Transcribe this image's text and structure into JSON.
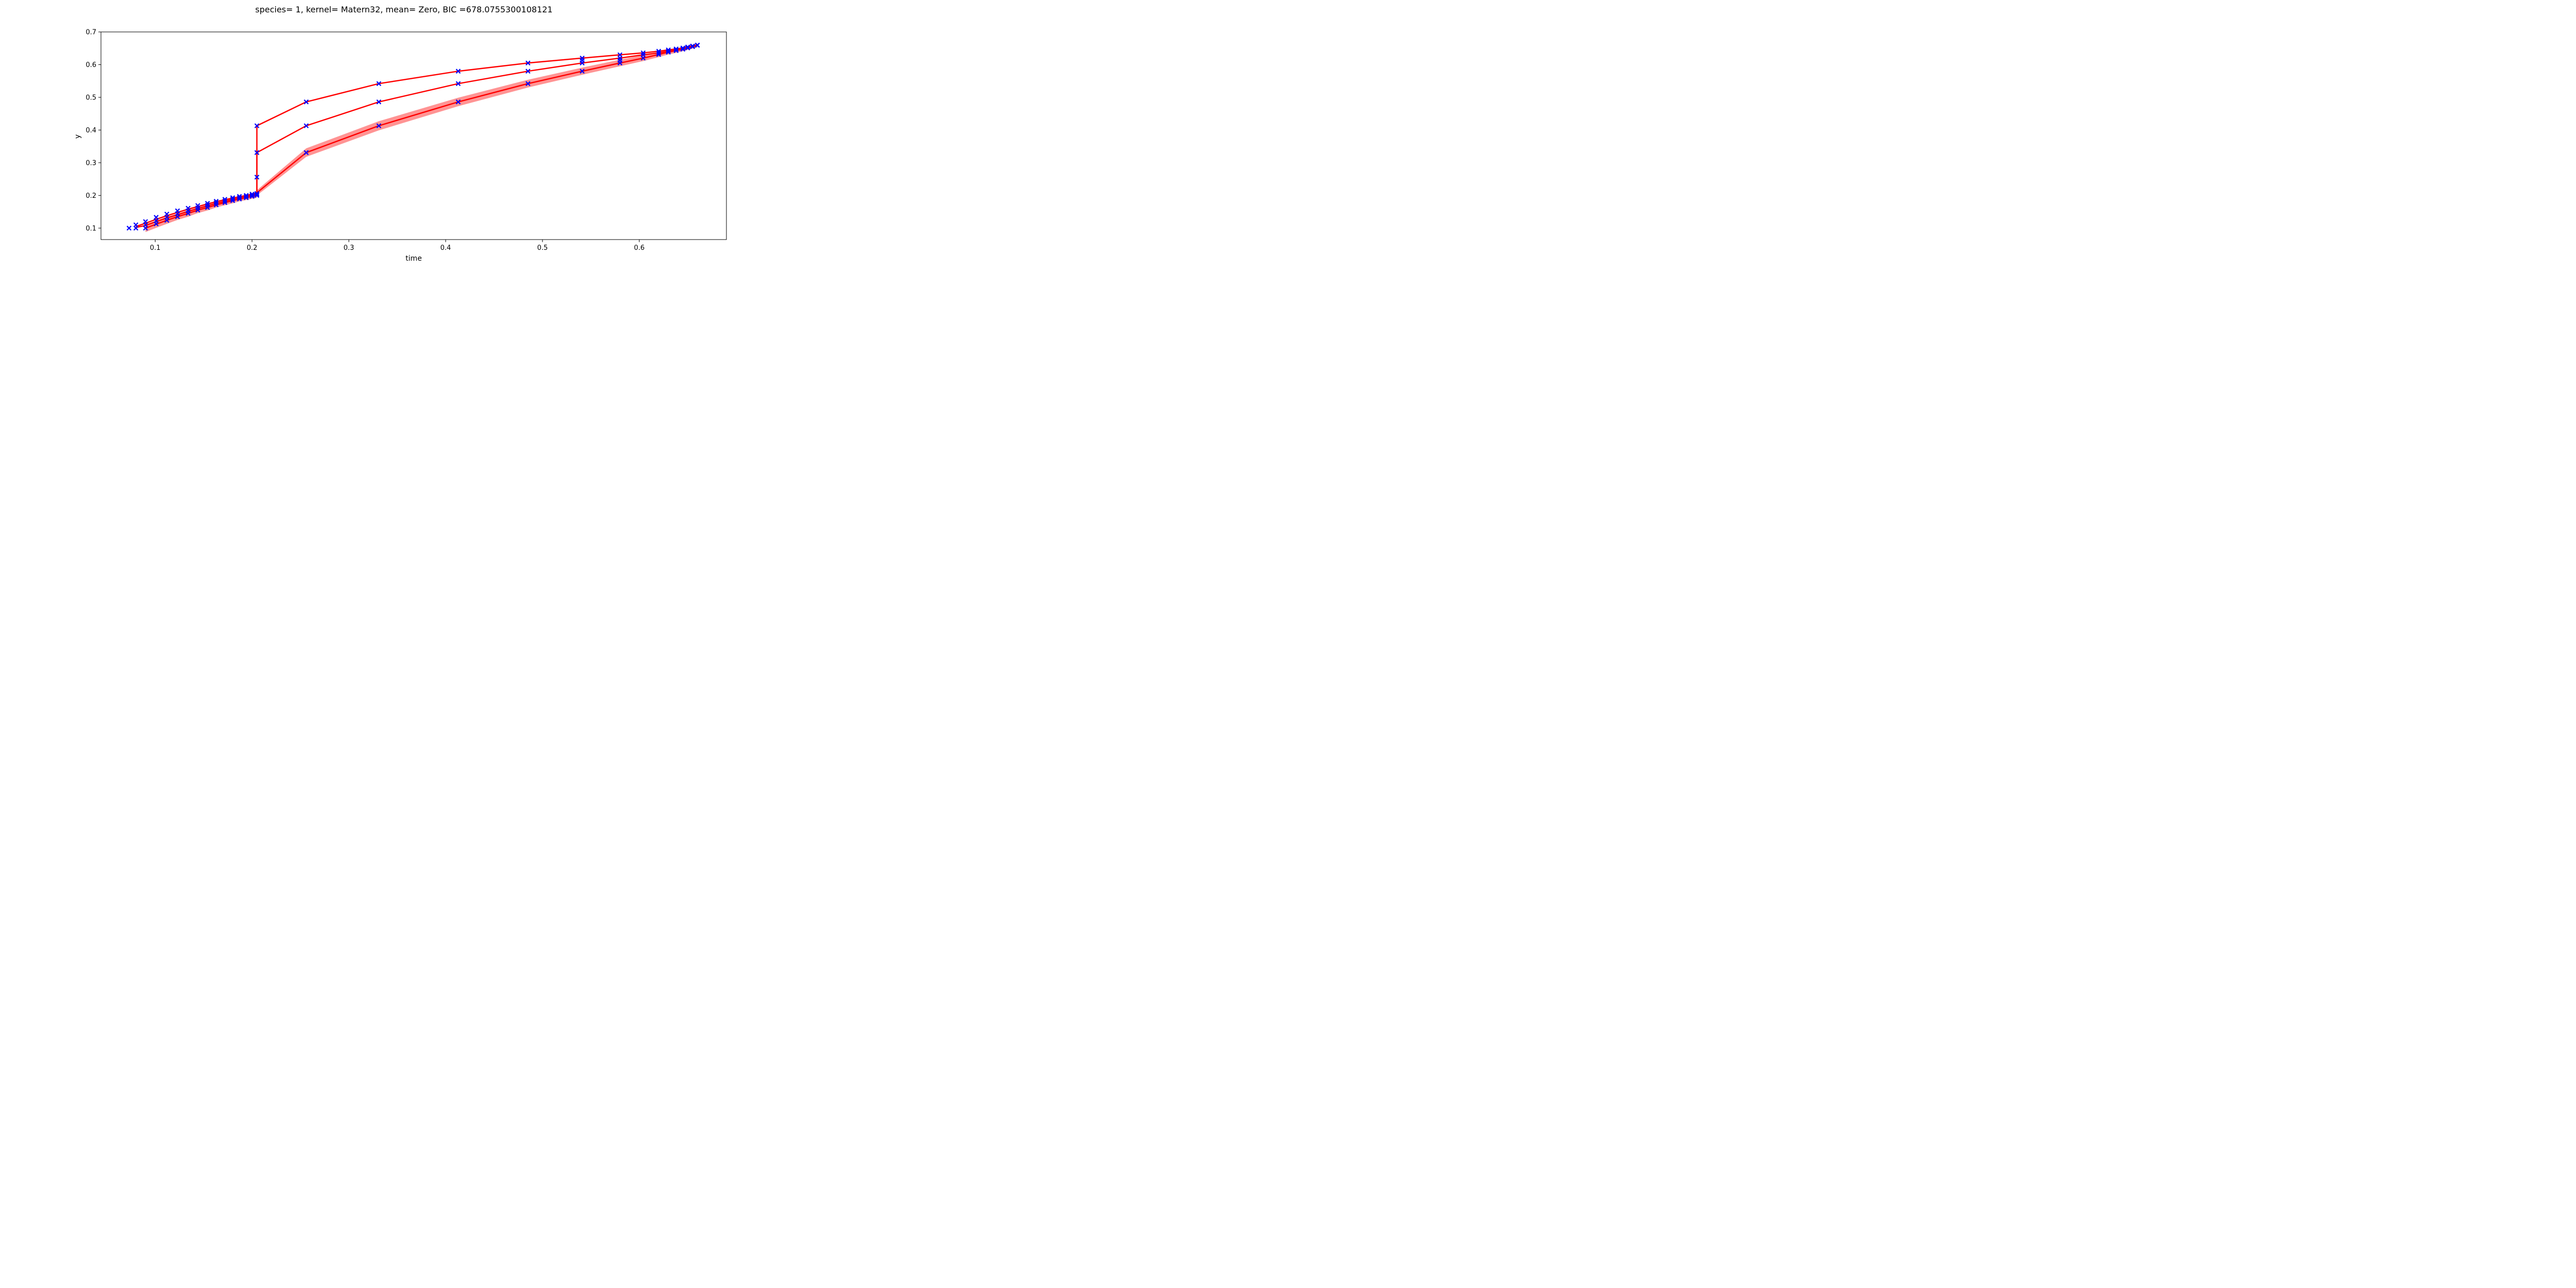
{
  "chart_data": {
    "type": "line",
    "title": "species= 1, kernel= Matern32, mean= Zero, BIC =678.0755300108121",
    "xlabel": "time",
    "ylabel": "y",
    "xlim": [
      0.044,
      0.69
    ],
    "ylim": [
      0.065,
      0.7
    ],
    "xticks": [
      0.1,
      0.2,
      0.3,
      0.4,
      0.5,
      0.6
    ],
    "xtick_labels": [
      "0.1",
      "0.2",
      "0.3",
      "0.4",
      "0.5",
      "0.6"
    ],
    "yticks": [
      0.1,
      0.2,
      0.3,
      0.4,
      0.5,
      0.6,
      0.7
    ],
    "ytick_labels": [
      "0.1",
      "0.2",
      "0.3",
      "0.4",
      "0.5",
      "0.6",
      "0.7"
    ],
    "grid": false,
    "legend": "none",
    "colors": {
      "line": "#ff0000",
      "band": "#ff6666",
      "marker": "#0000ff"
    },
    "series": [
      {
        "values": [
          [
            0.08,
            0.105
          ],
          [
            0.09,
            0.115
          ],
          [
            0.101,
            0.127
          ],
          [
            0.112,
            0.138
          ],
          [
            0.123,
            0.148
          ],
          [
            0.134,
            0.158
          ],
          [
            0.144,
            0.166
          ],
          [
            0.154,
            0.174
          ],
          [
            0.163,
            0.181
          ],
          [
            0.172,
            0.187
          ],
          [
            0.18,
            0.192
          ],
          [
            0.187,
            0.196
          ],
          [
            0.194,
            0.2
          ],
          [
            0.2,
            0.204
          ],
          [
            0.205,
            0.207
          ],
          [
            0.205,
            0.413
          ],
          [
            0.256,
            0.486
          ],
          [
            0.331,
            0.542
          ],
          [
            0.413,
            0.58
          ],
          [
            0.485,
            0.605
          ],
          [
            0.541,
            0.62
          ],
          [
            0.58,
            0.63
          ],
          [
            0.604,
            0.636
          ],
          [
            0.62,
            0.641
          ],
          [
            0.63,
            0.645
          ],
          [
            0.638,
            0.648
          ],
          [
            0.645,
            0.651
          ],
          [
            0.65,
            0.654
          ],
          [
            0.655,
            0.657
          ],
          [
            0.66,
            0.66
          ]
        ]
      },
      {
        "values": [
          [
            0.08,
            0.102
          ],
          [
            0.09,
            0.108
          ],
          [
            0.101,
            0.12
          ],
          [
            0.112,
            0.131
          ],
          [
            0.123,
            0.141
          ],
          [
            0.134,
            0.151
          ],
          [
            0.144,
            0.16
          ],
          [
            0.154,
            0.168
          ],
          [
            0.163,
            0.176
          ],
          [
            0.172,
            0.182
          ],
          [
            0.18,
            0.188
          ],
          [
            0.187,
            0.193
          ],
          [
            0.194,
            0.197
          ],
          [
            0.2,
            0.201
          ],
          [
            0.205,
            0.204
          ],
          [
            0.205,
            0.331
          ],
          [
            0.256,
            0.413
          ],
          [
            0.331,
            0.486
          ],
          [
            0.413,
            0.542
          ],
          [
            0.485,
            0.58
          ],
          [
            0.541,
            0.605
          ],
          [
            0.58,
            0.62
          ],
          [
            0.604,
            0.63
          ],
          [
            0.62,
            0.636
          ],
          [
            0.63,
            0.641
          ],
          [
            0.638,
            0.645
          ],
          [
            0.645,
            0.648
          ],
          [
            0.65,
            0.652
          ],
          [
            0.655,
            0.656
          ],
          [
            0.66,
            0.66
          ]
        ]
      },
      {
        "values": [
          [
            0.09,
            0.1
          ],
          [
            0.101,
            0.112
          ],
          [
            0.112,
            0.124
          ],
          [
            0.123,
            0.135
          ],
          [
            0.134,
            0.145
          ],
          [
            0.144,
            0.155
          ],
          [
            0.154,
            0.163
          ],
          [
            0.163,
            0.171
          ],
          [
            0.172,
            0.178
          ],
          [
            0.18,
            0.184
          ],
          [
            0.187,
            0.189
          ],
          [
            0.194,
            0.193
          ],
          [
            0.2,
            0.197
          ],
          [
            0.205,
            0.2
          ],
          [
            0.205,
            0.208
          ],
          [
            0.256,
            0.331
          ],
          [
            0.331,
            0.413
          ],
          [
            0.413,
            0.486
          ],
          [
            0.485,
            0.542
          ],
          [
            0.541,
            0.58
          ],
          [
            0.58,
            0.605
          ],
          [
            0.604,
            0.62
          ],
          [
            0.62,
            0.631
          ],
          [
            0.63,
            0.638
          ],
          [
            0.638,
            0.643
          ],
          [
            0.645,
            0.647
          ],
          [
            0.65,
            0.651
          ],
          [
            0.655,
            0.655
          ],
          [
            0.66,
            0.659
          ]
        ],
        "band_halfwidth": [
          0.012,
          0.011,
          0.011,
          0.01,
          0.01,
          0.009,
          0.009,
          0.008,
          0.008,
          0.008,
          0.007,
          0.007,
          0.007,
          0.007,
          0.008,
          0.013,
          0.014,
          0.013,
          0.012,
          0.011,
          0.01,
          0.009,
          0.008,
          0.007,
          0.007,
          0.006,
          0.006,
          0.006,
          0.006
        ]
      }
    ],
    "markers": [
      [
        0.073,
        0.1
      ],
      [
        0.08,
        0.1
      ],
      [
        0.09,
        0.1
      ],
      [
        0.08,
        0.11
      ],
      [
        0.09,
        0.11
      ],
      [
        0.09,
        0.12
      ],
      [
        0.101,
        0.113
      ],
      [
        0.101,
        0.122
      ],
      [
        0.101,
        0.133
      ],
      [
        0.112,
        0.124
      ],
      [
        0.112,
        0.133
      ],
      [
        0.112,
        0.143
      ],
      [
        0.123,
        0.135
      ],
      [
        0.123,
        0.144
      ],
      [
        0.123,
        0.153
      ],
      [
        0.134,
        0.145
      ],
      [
        0.134,
        0.153
      ],
      [
        0.134,
        0.161
      ],
      [
        0.144,
        0.155
      ],
      [
        0.144,
        0.162
      ],
      [
        0.144,
        0.169
      ],
      [
        0.154,
        0.163
      ],
      [
        0.154,
        0.17
      ],
      [
        0.154,
        0.176
      ],
      [
        0.163,
        0.171
      ],
      [
        0.163,
        0.177
      ],
      [
        0.163,
        0.182
      ],
      [
        0.172,
        0.178
      ],
      [
        0.172,
        0.183
      ],
      [
        0.172,
        0.188
      ],
      [
        0.18,
        0.184
      ],
      [
        0.18,
        0.189
      ],
      [
        0.18,
        0.193
      ],
      [
        0.187,
        0.189
      ],
      [
        0.187,
        0.193
      ],
      [
        0.187,
        0.197
      ],
      [
        0.194,
        0.193
      ],
      [
        0.194,
        0.197
      ],
      [
        0.194,
        0.2
      ],
      [
        0.2,
        0.197
      ],
      [
        0.2,
        0.2
      ],
      [
        0.2,
        0.204
      ],
      [
        0.205,
        0.2
      ],
      [
        0.205,
        0.203
      ],
      [
        0.205,
        0.206
      ],
      [
        0.205,
        0.256
      ],
      [
        0.205,
        0.331
      ],
      [
        0.205,
        0.413
      ],
      [
        0.256,
        0.331
      ],
      [
        0.256,
        0.413
      ],
      [
        0.256,
        0.486
      ],
      [
        0.331,
        0.413
      ],
      [
        0.331,
        0.486
      ],
      [
        0.331,
        0.542
      ],
      [
        0.413,
        0.486
      ],
      [
        0.413,
        0.542
      ],
      [
        0.413,
        0.58
      ],
      [
        0.485,
        0.542
      ],
      [
        0.485,
        0.58
      ],
      [
        0.485,
        0.605
      ],
      [
        0.541,
        0.58
      ],
      [
        0.541,
        0.605
      ],
      [
        0.541,
        0.613
      ],
      [
        0.541,
        0.62
      ],
      [
        0.58,
        0.605
      ],
      [
        0.58,
        0.613
      ],
      [
        0.58,
        0.62
      ],
      [
        0.58,
        0.63
      ],
      [
        0.604,
        0.62
      ],
      [
        0.604,
        0.63
      ],
      [
        0.604,
        0.636
      ],
      [
        0.62,
        0.631
      ],
      [
        0.62,
        0.636
      ],
      [
        0.62,
        0.641
      ],
      [
        0.63,
        0.638
      ],
      [
        0.63,
        0.641
      ],
      [
        0.63,
        0.645
      ],
      [
        0.638,
        0.643
      ],
      [
        0.638,
        0.645
      ],
      [
        0.638,
        0.648
      ],
      [
        0.645,
        0.647
      ],
      [
        0.645,
        0.648
      ],
      [
        0.645,
        0.651
      ],
      [
        0.65,
        0.651
      ],
      [
        0.65,
        0.652
      ],
      [
        0.65,
        0.654
      ],
      [
        0.655,
        0.655
      ],
      [
        0.655,
        0.656
      ],
      [
        0.655,
        0.657
      ],
      [
        0.66,
        0.659
      ],
      [
        0.66,
        0.66
      ]
    ]
  }
}
